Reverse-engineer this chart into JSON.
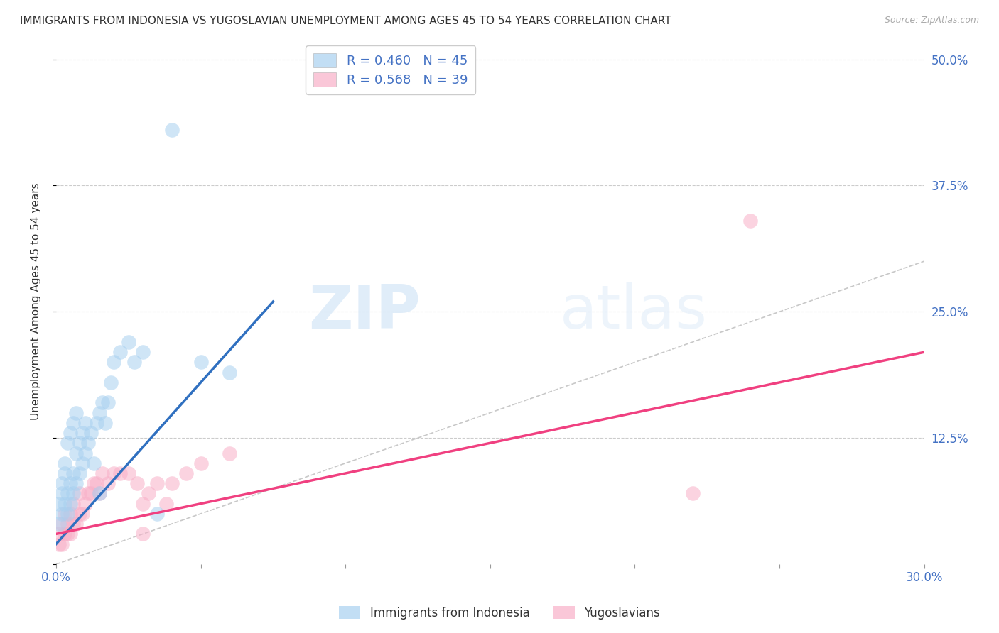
{
  "title": "IMMIGRANTS FROM INDONESIA VS YUGOSLAVIAN UNEMPLOYMENT AMONG AGES 45 TO 54 YEARS CORRELATION CHART",
  "source": "Source: ZipAtlas.com",
  "ylabel": "Unemployment Among Ages 45 to 54 years",
  "xlim": [
    0.0,
    0.3
  ],
  "ylim": [
    0.0,
    0.52
  ],
  "blue_R": 0.46,
  "blue_N": 45,
  "pink_R": 0.568,
  "pink_N": 39,
  "blue_color": "#a8d0f0",
  "pink_color": "#f8b0c8",
  "blue_line_color": "#3070c0",
  "pink_line_color": "#f04080",
  "ref_line_color": "#c8c8c8",
  "background_color": "#ffffff",
  "blue_scatter_x": [
    0.001,
    0.001,
    0.002,
    0.002,
    0.002,
    0.003,
    0.003,
    0.003,
    0.004,
    0.004,
    0.004,
    0.005,
    0.005,
    0.005,
    0.006,
    0.006,
    0.006,
    0.007,
    0.007,
    0.007,
    0.008,
    0.008,
    0.009,
    0.009,
    0.01,
    0.01,
    0.011,
    0.012,
    0.013,
    0.014,
    0.015,
    0.016,
    0.017,
    0.018,
    0.019,
    0.02,
    0.022,
    0.025,
    0.027,
    0.03,
    0.035,
    0.04,
    0.05,
    0.06,
    0.015
  ],
  "blue_scatter_y": [
    0.04,
    0.06,
    0.05,
    0.07,
    0.08,
    0.06,
    0.09,
    0.1,
    0.05,
    0.07,
    0.12,
    0.06,
    0.08,
    0.13,
    0.07,
    0.09,
    0.14,
    0.08,
    0.11,
    0.15,
    0.09,
    0.12,
    0.1,
    0.13,
    0.11,
    0.14,
    0.12,
    0.13,
    0.1,
    0.14,
    0.15,
    0.16,
    0.14,
    0.16,
    0.18,
    0.2,
    0.21,
    0.22,
    0.2,
    0.21,
    0.05,
    0.43,
    0.2,
    0.19,
    0.07
  ],
  "pink_scatter_x": [
    0.001,
    0.001,
    0.002,
    0.002,
    0.003,
    0.003,
    0.004,
    0.004,
    0.005,
    0.005,
    0.006,
    0.006,
    0.007,
    0.008,
    0.008,
    0.009,
    0.01,
    0.011,
    0.012,
    0.013,
    0.014,
    0.015,
    0.016,
    0.018,
    0.02,
    0.022,
    0.025,
    0.028,
    0.03,
    0.03,
    0.032,
    0.035,
    0.038,
    0.04,
    0.045,
    0.05,
    0.06,
    0.22,
    0.24
  ],
  "pink_scatter_y": [
    0.02,
    0.03,
    0.02,
    0.04,
    0.03,
    0.05,
    0.03,
    0.04,
    0.03,
    0.05,
    0.04,
    0.06,
    0.04,
    0.05,
    0.07,
    0.05,
    0.06,
    0.07,
    0.07,
    0.08,
    0.08,
    0.07,
    0.09,
    0.08,
    0.09,
    0.09,
    0.09,
    0.08,
    0.03,
    0.06,
    0.07,
    0.08,
    0.06,
    0.08,
    0.09,
    0.1,
    0.11,
    0.07,
    0.34
  ],
  "blue_trend_x": [
    0.0,
    0.075
  ],
  "blue_trend_y": [
    0.02,
    0.26
  ],
  "pink_trend_x": [
    0.0,
    0.3
  ],
  "pink_trend_y": [
    0.03,
    0.21
  ],
  "ref_line_x": [
    0.0,
    0.52
  ],
  "ref_line_y": [
    0.0,
    0.52
  ],
  "legend_blue_label": "Immigrants from Indonesia",
  "legend_pink_label": "Yugoslavians",
  "title_fontsize": 11,
  "axis_label_fontsize": 11,
  "tick_fontsize": 12,
  "legend_fontsize": 13,
  "watermark_text": "ZIPatlas",
  "right_axis_color": "#4472C4"
}
